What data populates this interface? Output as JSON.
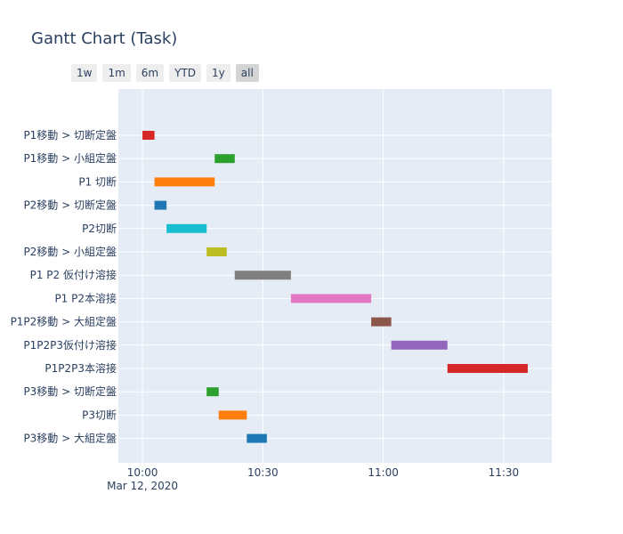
{
  "title": "Gantt Chart (Task)",
  "range_buttons": [
    {
      "label": "1w",
      "active": false
    },
    {
      "label": "1m",
      "active": false
    },
    {
      "label": "6m",
      "active": false
    },
    {
      "label": "YTD",
      "active": false
    },
    {
      "label": "1y",
      "active": false
    },
    {
      "label": "all",
      "active": true
    }
  ],
  "colors": {
    "plot_bg": "#e5ecf6",
    "grid": "#ffffff",
    "text": "#2a3f5f"
  },
  "chart_data": {
    "type": "gantt",
    "title": "Gantt Chart (Task)",
    "x_axis": {
      "type": "date",
      "range": [
        "2020-03-12 09:54",
        "2020-03-12 11:42"
      ],
      "ticks": [
        "10:00",
        "10:30",
        "11:00",
        "11:30"
      ],
      "tick_values": [
        "2020-03-12 10:00",
        "2020-03-12 10:30",
        "2020-03-12 11:00",
        "2020-03-12 11:30"
      ],
      "date_label": "Mar 12, 2020"
    },
    "grid": true,
    "tasks": [
      {
        "task": "P1移動 > 切断定盤",
        "start": "2020-03-12 10:00",
        "end": "2020-03-12 10:03",
        "color": "#d62728"
      },
      {
        "task": "P1移動 > 小組定盤",
        "start": "2020-03-12 10:18",
        "end": "2020-03-12 10:23",
        "color": "#2ca02c"
      },
      {
        "task": "P1 切断",
        "start": "2020-03-12 10:03",
        "end": "2020-03-12 10:18",
        "color": "#ff7f0e"
      },
      {
        "task": "P2移動 > 切断定盤",
        "start": "2020-03-12 10:03",
        "end": "2020-03-12 10:06",
        "color": "#1f77b4"
      },
      {
        "task": "P2切断",
        "start": "2020-03-12 10:06",
        "end": "2020-03-12 10:16",
        "color": "#17becf"
      },
      {
        "task": "P2移動 > 小組定盤",
        "start": "2020-03-12 10:16",
        "end": "2020-03-12 10:21",
        "color": "#bcbd22"
      },
      {
        "task": "P1 P2 仮付け溶接",
        "start": "2020-03-12 10:23",
        "end": "2020-03-12 10:37",
        "color": "#7f7f7f"
      },
      {
        "task": "P1 P2本溶接",
        "start": "2020-03-12 10:37",
        "end": "2020-03-12 10:57",
        "color": "#e377c2"
      },
      {
        "task": "P1P2移動 > 大組定盤",
        "start": "2020-03-12 10:57",
        "end": "2020-03-12 11:02",
        "color": "#8c564b"
      },
      {
        "task": "P1P2P3仮付け溶接",
        "start": "2020-03-12 11:02",
        "end": "2020-03-12 11:16",
        "color": "#9467bd"
      },
      {
        "task": "P1P2P3本溶接",
        "start": "2020-03-12 11:16",
        "end": "2020-03-12 11:36",
        "color": "#d62728"
      },
      {
        "task": "P3移動 > 切断定盤",
        "start": "2020-03-12 10:16",
        "end": "2020-03-12 10:19",
        "color": "#2ca02c"
      },
      {
        "task": "P3切断",
        "start": "2020-03-12 10:19",
        "end": "2020-03-12 10:26",
        "color": "#ff7f0e"
      },
      {
        "task": "P3移動 > 大組定盤",
        "start": "2020-03-12 10:26",
        "end": "2020-03-12 10:31",
        "color": "#1f77b4"
      }
    ]
  }
}
